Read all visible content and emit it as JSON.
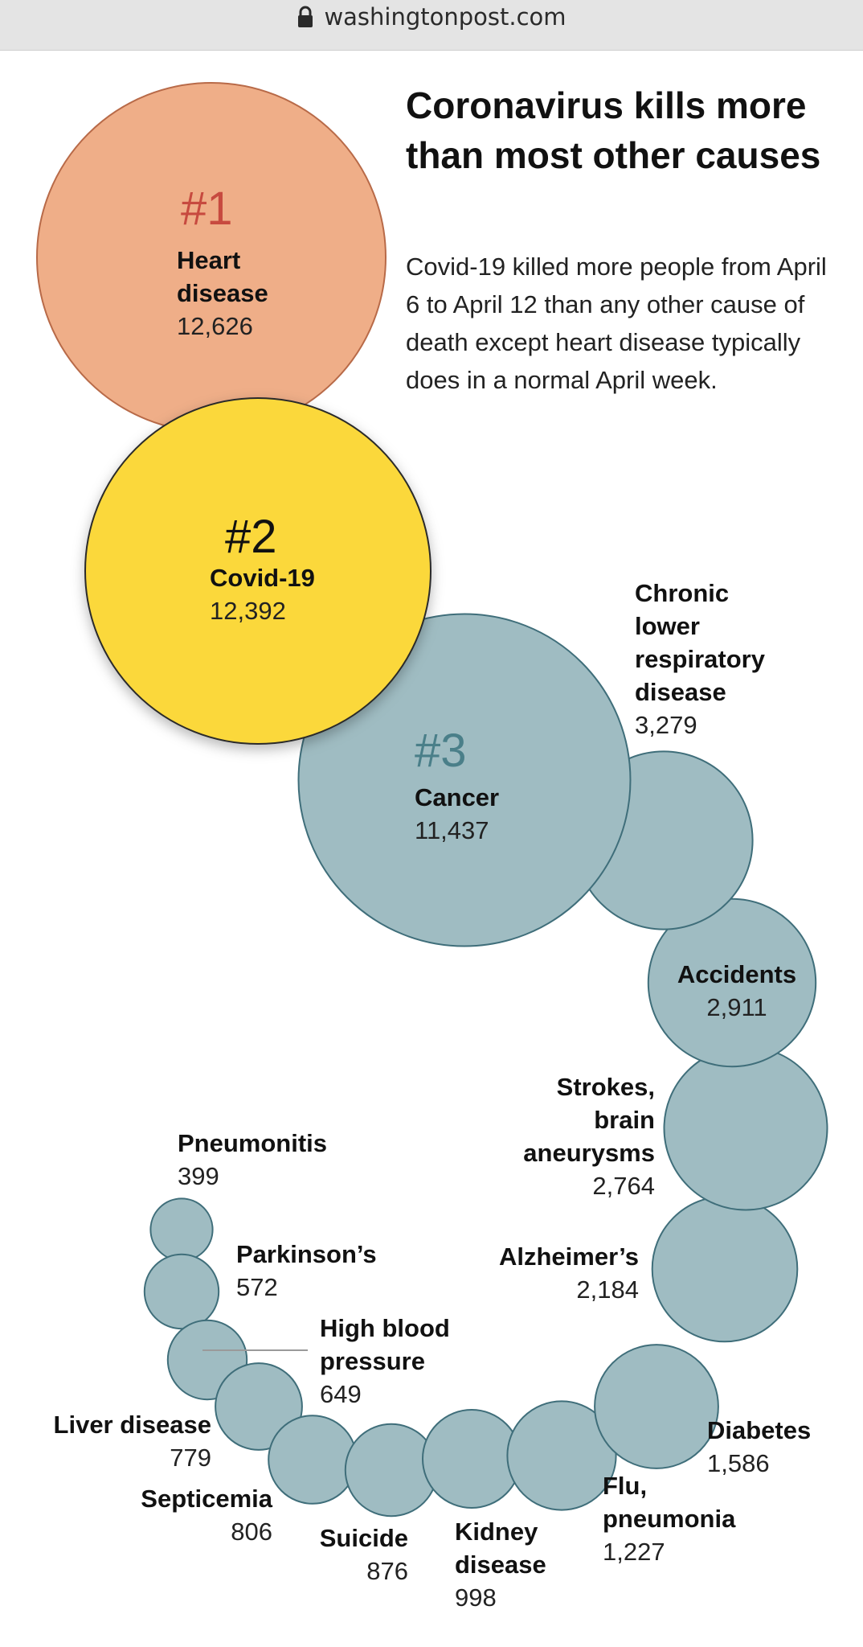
{
  "browser": {
    "url": "washingtonpost.com",
    "lock_icon": "lock-icon"
  },
  "header": {
    "title": "Coronavirus kills more than most other causes",
    "subtitle": "Covid-19 killed more people from April 6 to April 12 than any other cause of death except heart disease typically does in a normal April week."
  },
  "colors": {
    "heart": "#efae88",
    "heart_stroke": "#b86a48",
    "heart_rank": "#c74a3f",
    "covid": "#fbd83a",
    "covid_stroke": "#2b2b2b",
    "other": "#9fbcc2",
    "other_stroke": "#3f6e7a",
    "other_rank": "#4a7f89"
  },
  "chart_data": {
    "type": "bubble",
    "title": "Coronavirus kills more than most other causes",
    "series": [
      {
        "rank": "#1",
        "name": "Heart disease",
        "name_lines": [
          "Heart",
          "disease"
        ],
        "value": 12626,
        "label": "12,626"
      },
      {
        "rank": "#2",
        "name": "Covid-19",
        "name_lines": [
          "Covid-19"
        ],
        "value": 12392,
        "label": "12,392"
      },
      {
        "rank": "#3",
        "name": "Cancer",
        "name_lines": [
          "Cancer"
        ],
        "value": 11437,
        "label": "11,437"
      },
      {
        "name": "Chronic lower respiratory disease",
        "name_lines": [
          "Chronic",
          "lower",
          "respiratory",
          "disease"
        ],
        "value": 3279,
        "label": "3,279"
      },
      {
        "name": "Accidents",
        "name_lines": [
          "Accidents"
        ],
        "value": 2911,
        "label": "2,911"
      },
      {
        "name": "Strokes, brain aneurysms",
        "name_lines": [
          "Strokes,",
          "brain",
          "aneurysms"
        ],
        "value": 2764,
        "label": "2,764"
      },
      {
        "name": "Alzheimer’s",
        "name_lines": [
          "Alzheimer’s"
        ],
        "value": 2184,
        "label": "2,184"
      },
      {
        "name": "Diabetes",
        "name_lines": [
          "Diabetes"
        ],
        "value": 1586,
        "label": "1,586"
      },
      {
        "name": "Flu, pneumonia",
        "name_lines": [
          "Flu,",
          "pneumonia"
        ],
        "value": 1227,
        "label": "1,227"
      },
      {
        "name": "Kidney disease",
        "name_lines": [
          "Kidney",
          "disease"
        ],
        "value": 998,
        "label": "998"
      },
      {
        "name": "Suicide",
        "name_lines": [
          "Suicide"
        ],
        "value": 876,
        "label": "876"
      },
      {
        "name": "Septicemia",
        "name_lines": [
          "Septicemia"
        ],
        "value": 806,
        "label": "806"
      },
      {
        "name": "Liver disease",
        "name_lines": [
          "Liver disease"
        ],
        "value": 779,
        "label": "779"
      },
      {
        "name": "High blood pressure",
        "name_lines": [
          "High blood",
          "pressure"
        ],
        "value": 649,
        "label": "649"
      },
      {
        "name": "Parkinson’s",
        "name_lines": [
          "Parkinson’s"
        ],
        "value": 572,
        "label": "572"
      },
      {
        "name": "Pneumonitis",
        "name_lines": [
          "Pneumonitis"
        ],
        "value": 399,
        "label": "399"
      }
    ]
  }
}
